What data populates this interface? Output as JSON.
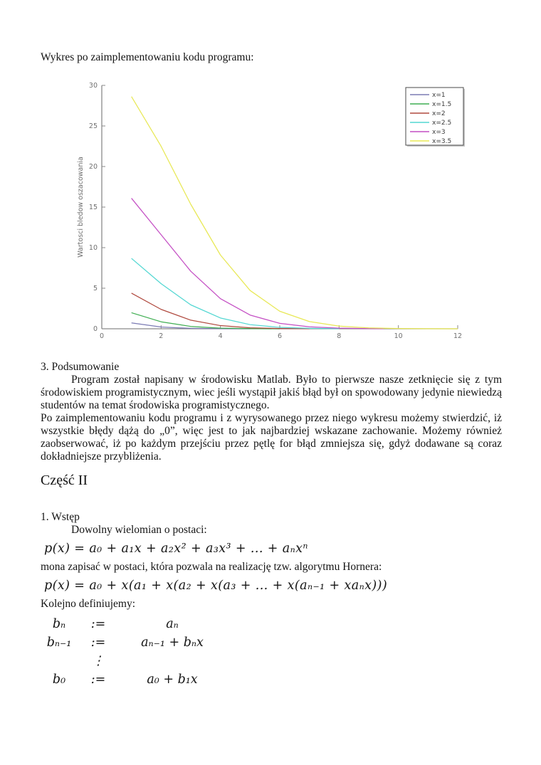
{
  "intro": "Wykres po zaimplementowaniu kodu programu:",
  "chart_data": {
    "type": "line",
    "title": "",
    "xlabel": "",
    "ylabel": "Wartosci bledow oszacowania",
    "xlim": [
      0,
      12
    ],
    "ylim": [
      0,
      30
    ],
    "xticks": [
      0,
      2,
      4,
      6,
      8,
      10,
      12
    ],
    "yticks": [
      0,
      5,
      10,
      15,
      20,
      25,
      30
    ],
    "grid": false,
    "legend_position": "top-right",
    "axis_color": "#8a8a8a",
    "series": [
      {
        "name": "x=1",
        "color": "#7b7bb4",
        "x": [
          1,
          2,
          3,
          4,
          5
        ],
        "values": [
          0.72,
          0.22,
          0.05,
          0.01,
          0
        ]
      },
      {
        "name": "x=1.5",
        "color": "#3fae52",
        "x": [
          1,
          2,
          3,
          4,
          5,
          6
        ],
        "values": [
          1.98,
          0.86,
          0.29,
          0.08,
          0.02,
          0
        ]
      },
      {
        "name": "x=2",
        "color": "#b04a3f",
        "x": [
          1,
          2,
          3,
          4,
          5,
          6,
          7
        ],
        "values": [
          4.39,
          2.39,
          1.06,
          0.39,
          0.12,
          0.03,
          0.01
        ]
      },
      {
        "name": "x=2.5",
        "color": "#52d7d2",
        "x": [
          1,
          2,
          3,
          4,
          5,
          6,
          7,
          8
        ],
        "values": [
          8.68,
          5.56,
          2.95,
          1.33,
          0.51,
          0.17,
          0.05,
          0.01
        ]
      },
      {
        "name": "x=3",
        "color": "#c44fc4",
        "x": [
          1,
          2,
          3,
          4,
          5,
          6,
          7,
          8,
          9,
          9.5
        ],
        "values": [
          16.09,
          11.59,
          7.09,
          3.71,
          1.69,
          0.67,
          0.24,
          0.08,
          0.02,
          0.01
        ]
      },
      {
        "name": "x=3.5",
        "color": "#e8e855",
        "x": [
          1,
          2,
          3,
          4,
          5,
          6,
          7,
          8,
          9,
          10,
          11,
          12
        ],
        "values": [
          28.62,
          22.49,
          15.34,
          9.09,
          4.72,
          2.16,
          0.89,
          0.33,
          0.11,
          0.03,
          0.01,
          0
        ]
      }
    ]
  },
  "summary": {
    "heading": "3. Podsumowanie",
    "para1": "Program został napisany w środowisku Matlab. Było to pierwsze nasze zetknięcie się z tym środowiskiem programistycznym, wiec jeśli wystąpił jakiś błąd był on spowodowany jedynie niewiedzą studentów na temat środowiska programistycznego.",
    "para2": "Po zaimplementowaniu kodu programu i z wyrysowanego przez niego wykresu możemy stwierdzić, iż wszystkie błędy dążą do „0”, więc jest to jak najbardziej wskazane zachowanie. Możemy również zaobserwować, iż po każdym przejściu przez pętlę for błąd zmniejsza się, gdyż dodawane są coraz dokładniejsze przybliżenia."
  },
  "part2": {
    "heading": "Część II",
    "section": "1. Wstęp",
    "line1": "Dowolny wielomian o postaci:",
    "formula1": "p(x) = a₀ + a₁x + a₂x² + a₃x³ + ... + aₙxⁿ",
    "line2": "mona zapisać w postaci, która pozwala na realizację tzw. algorytmu Hornera:",
    "formula2": "p(x) = a₀ + x(a₁ + x(a₂ + x(a₃ + ... + x(aₙ₋₁ + xaₙx)))",
    "line3": "Kolejno definiujemy:",
    "definitions": [
      {
        "lhs": "bₙ",
        "op": ":=",
        "rhs": "aₙ"
      },
      {
        "lhs": "bₙ₋₁",
        "op": ":=",
        "rhs": "aₙ₋₁ + bₙx"
      },
      {
        "lhs": "",
        "op": "⋮",
        "rhs": ""
      },
      {
        "lhs": "b₀",
        "op": ":=",
        "rhs": "a₀ + b₁x"
      }
    ]
  }
}
